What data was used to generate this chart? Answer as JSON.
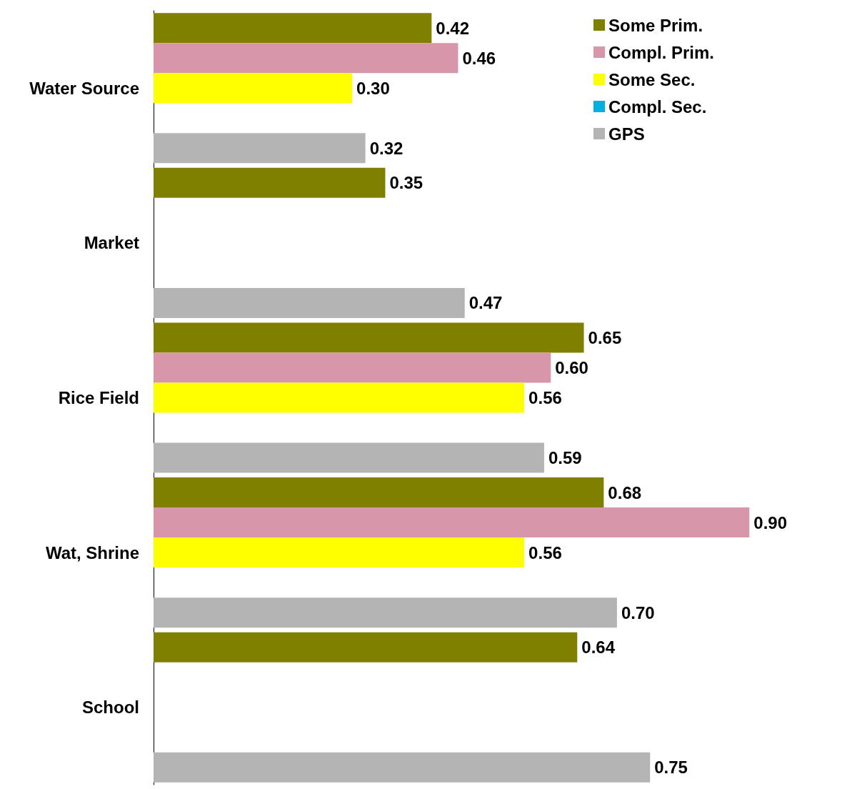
{
  "chart_data": {
    "type": "bar",
    "orientation": "horizontal",
    "categories": [
      "Water Source",
      "Market",
      "Rice Field",
      "Wat, Shrine",
      "School"
    ],
    "series": [
      {
        "name": "Some Prim.",
        "color": "#808000",
        "values": [
          0.42,
          0.35,
          0.65,
          0.68,
          0.64
        ],
        "value_labels": [
          "0.42",
          "0.35",
          "0.65",
          "0.68",
          "0.64"
        ]
      },
      {
        "name": "Compl. Prim.",
        "color": "#d896aa",
        "values": [
          0.46,
          null,
          0.6,
          0.9,
          null
        ],
        "value_labels": [
          "0.46",
          null,
          "0.60",
          "0.90",
          null
        ]
      },
      {
        "name": "Some Sec.",
        "color": "#ffff00",
        "values": [
          0.3,
          null,
          0.56,
          0.56,
          null
        ],
        "value_labels": [
          "0.30",
          null,
          "0.56",
          "0.56",
          null
        ]
      },
      {
        "name": "Compl. Sec.",
        "color": "#00b0e0",
        "values": [
          null,
          null,
          null,
          null,
          null
        ],
        "value_labels": [
          null,
          null,
          null,
          null,
          null
        ]
      },
      {
        "name": "GPS",
        "color": "#b4b4b4",
        "values": [
          0.32,
          0.47,
          0.59,
          0.7,
          0.75
        ],
        "value_labels": [
          "0.32",
          "0.47",
          "0.59",
          "0.70",
          "0.75"
        ]
      }
    ],
    "legend": "top right",
    "tick_labels": "y"
  }
}
